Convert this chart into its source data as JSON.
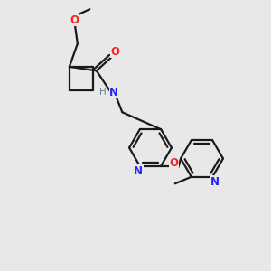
{
  "background_color": "#e8e8e8",
  "bond_color": "#1a1a1a",
  "nitrogen_color": "#2323ff",
  "oxygen_color": "#ff2020",
  "h_color": "#708090",
  "line_width": 1.6,
  "figsize": [
    3.0,
    3.0
  ],
  "dpi": 100,
  "xlim": [
    0,
    10
  ],
  "ylim": [
    0,
    10
  ]
}
